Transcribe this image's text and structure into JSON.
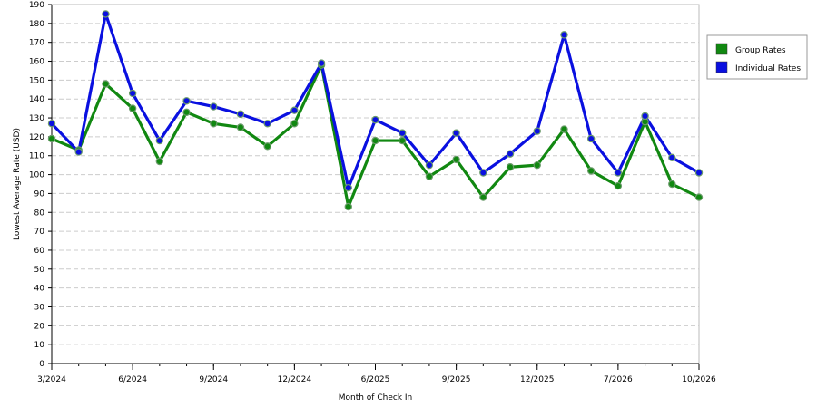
{
  "chart_data": {
    "type": "line",
    "title": "",
    "xlabel": "Month of Check In",
    "ylabel": "Lowest Average Rate (USD)",
    "ylim": [
      0,
      190
    ],
    "y_ticks": [
      0,
      10,
      20,
      30,
      40,
      50,
      60,
      70,
      80,
      90,
      100,
      110,
      120,
      130,
      140,
      150,
      160,
      170,
      180,
      190
    ],
    "x_tick_labels": [
      "3/2024",
      "6/2024",
      "9/2024",
      "12/2024",
      "6/2025",
      "9/2025",
      "12/2025",
      "7/2026",
      "10/2026"
    ],
    "x_tick_index": [
      0,
      3,
      6,
      9,
      12,
      15,
      18,
      21,
      24
    ],
    "grid": true,
    "legend_placement": "right",
    "series": [
      {
        "name": "Group Rates",
        "color": "#118811",
        "values": [
          119,
          113,
          148,
          135,
          107,
          133,
          127,
          125,
          115,
          127,
          158,
          83,
          118,
          118,
          99,
          108,
          88,
          104,
          105,
          124,
          102,
          94,
          128,
          95,
          88
        ]
      },
      {
        "name": "Individual Rates",
        "color": "#0a10e0",
        "values": [
          127,
          112,
          185,
          143,
          118,
          139,
          136,
          132,
          127,
          134,
          159,
          93,
          129,
          122,
          105,
          122,
          101,
          111,
          123,
          174,
          119,
          101,
          131,
          109,
          101
        ]
      }
    ]
  }
}
